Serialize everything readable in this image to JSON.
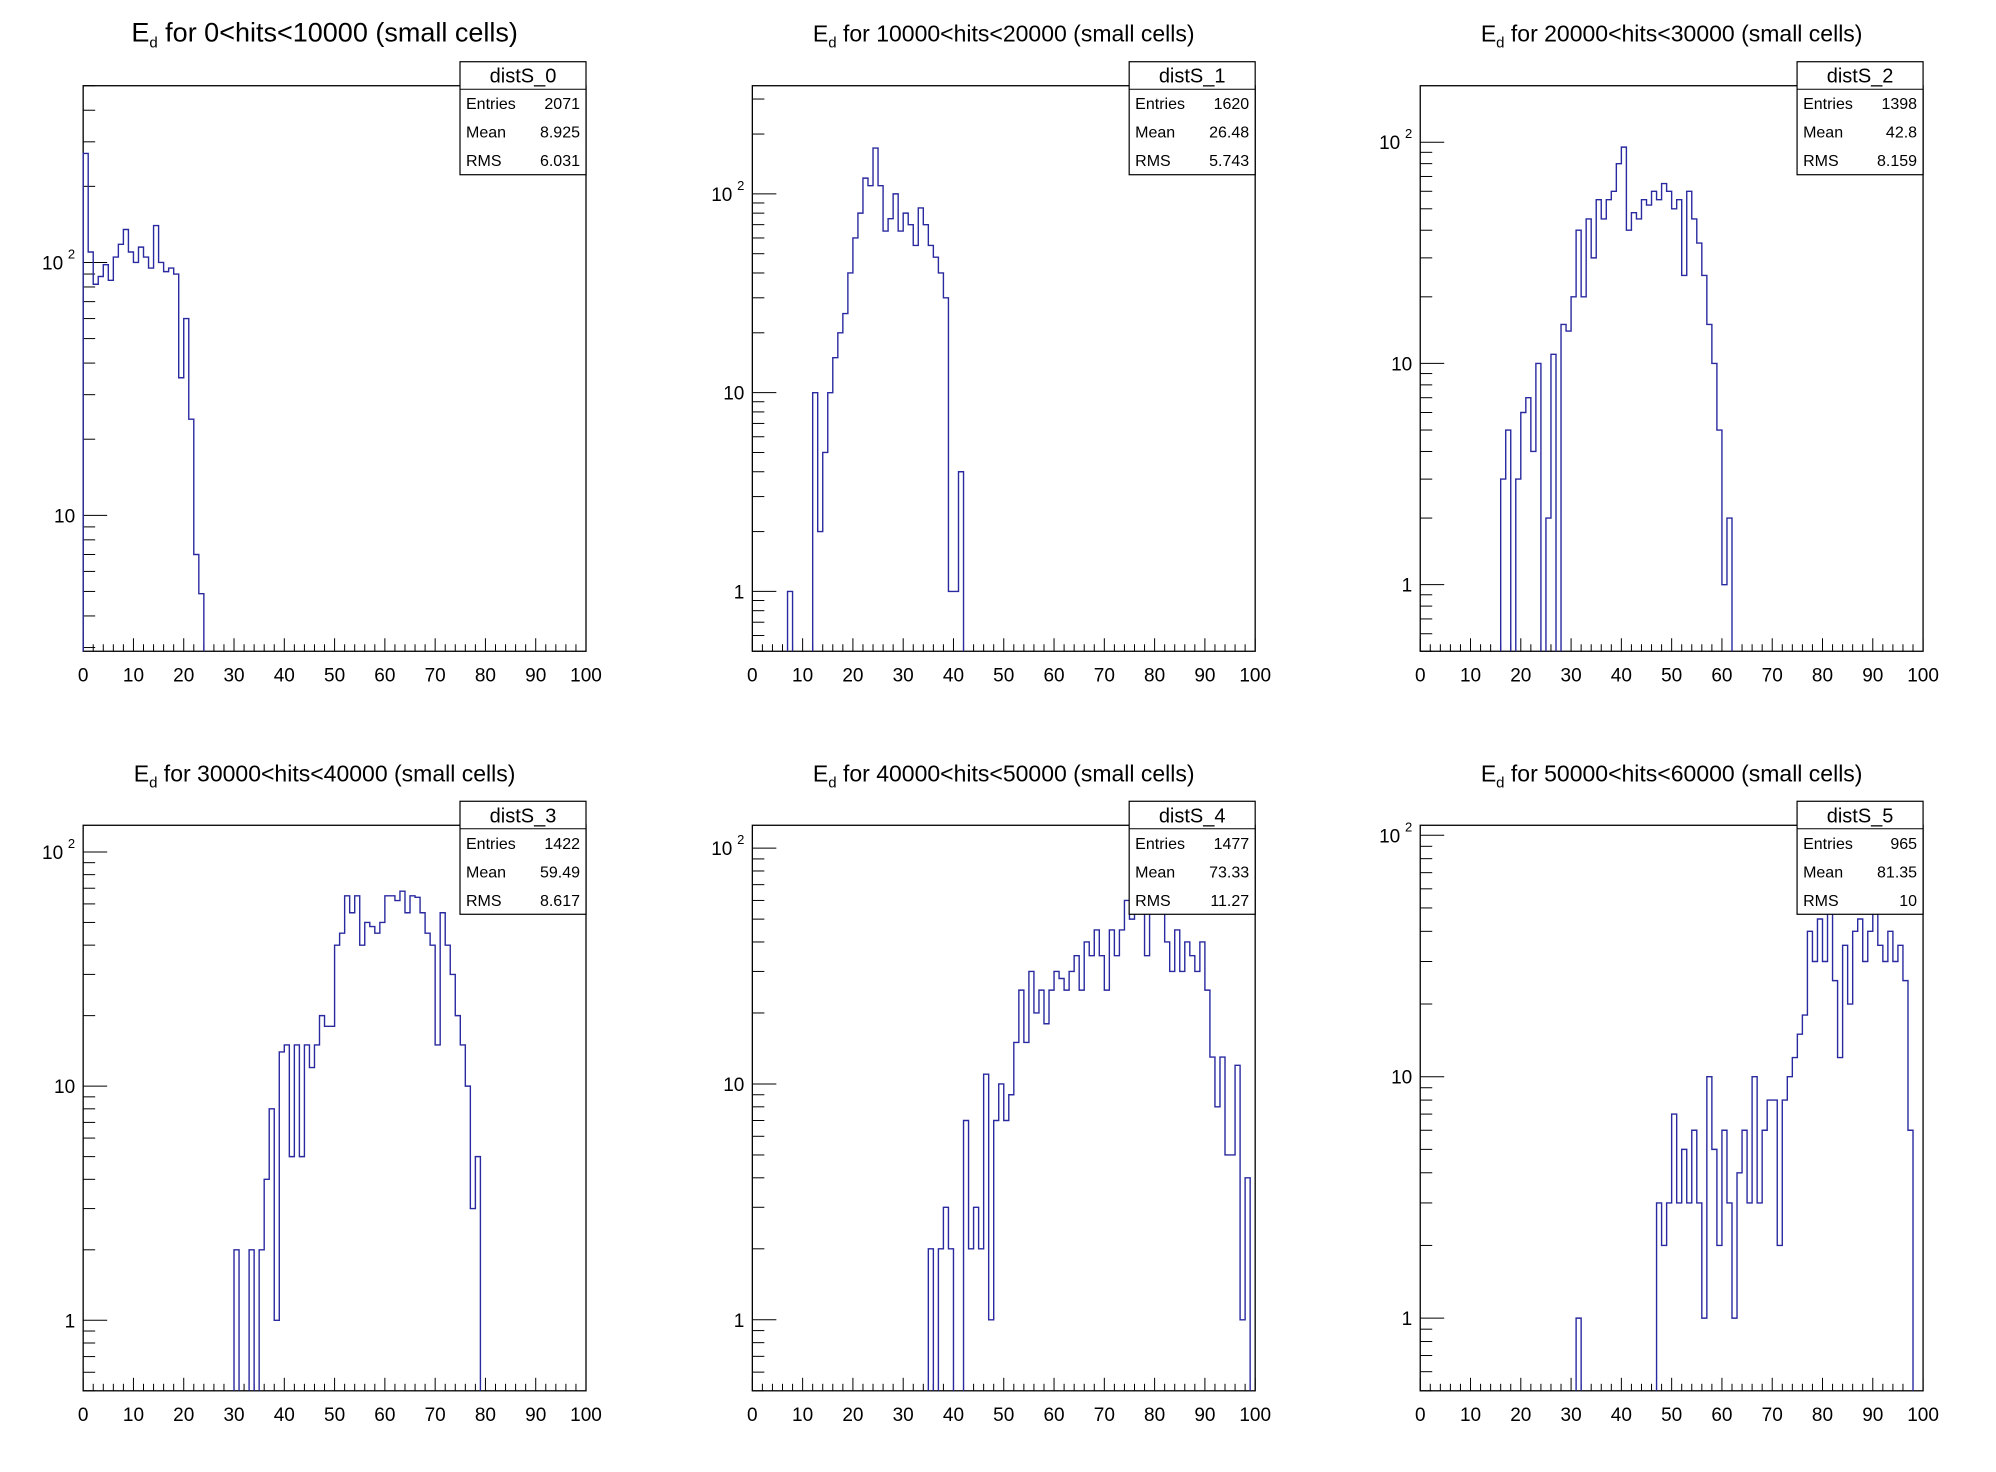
{
  "chart_data": [
    {
      "type": "bar",
      "title_main": "E",
      "title_sub": "d",
      "title_rest": " for 0<hits<10000 (small cells)",
      "stats": {
        "name": "distS_0",
        "entries": "2071",
        "mean": "8.925",
        "rms": "6.031"
      },
      "x_ticks": [
        "0",
        "10",
        "20",
        "30",
        "40",
        "50",
        "60",
        "70",
        "80",
        "90",
        "100"
      ],
      "xlim": [
        0,
        100
      ],
      "log_y": true,
      "ylim": [
        2.9,
        500
      ],
      "y_ticks": [
        {
          "v": 10,
          "label": "10"
        },
        {
          "v": 100,
          "label": "10",
          "sup": "2"
        }
      ],
      "bin_width": 1,
      "bins": {
        "0": 270,
        "1": 110,
        "2": 82,
        "3": 88,
        "4": 98,
        "5": 85,
        "6": 105,
        "7": 118,
        "8": 135,
        "9": 110,
        "10": 100,
        "11": 115,
        "12": 105,
        "13": 95,
        "14": 140,
        "15": 100,
        "16": 92,
        "17": 95,
        "18": 90,
        "19": 35,
        "20": 60,
        "21": 24,
        "22": 7,
        "23": 4.9
      }
    },
    {
      "type": "bar",
      "title_main": "E",
      "title_sub": "d",
      "title_rest": " for 10000<hits<20000 (small cells)",
      "stats": {
        "name": "distS_1",
        "entries": "1620",
        "mean": "26.48",
        "rms": "5.743"
      },
      "x_ticks": [
        "0",
        "10",
        "20",
        "30",
        "40",
        "50",
        "60",
        "70",
        "80",
        "90",
        "100"
      ],
      "xlim": [
        0,
        100
      ],
      "log_y": true,
      "ylim": [
        0.5,
        350
      ],
      "y_ticks": [
        {
          "v": 1,
          "label": "1"
        },
        {
          "v": 10,
          "label": "10"
        },
        {
          "v": 100,
          "label": "10",
          "sup": "2"
        }
      ],
      "bin_width": 1,
      "bins": {
        "7": 1,
        "12": 10,
        "13": 2,
        "14": 5,
        "15": 10,
        "16": 15,
        "17": 20,
        "18": 25,
        "19": 40,
        "20": 60,
        "21": 80,
        "22": 120,
        "23": 110,
        "24": 170,
        "25": 110,
        "26": 65,
        "27": 75,
        "28": 100,
        "29": 65,
        "30": 80,
        "31": 70,
        "32": 55,
        "33": 85,
        "34": 70,
        "35": 55,
        "36": 48,
        "37": 40,
        "38": 30,
        "39": 1,
        "40": 1,
        "41": 4
      }
    },
    {
      "type": "bar",
      "title_main": "E",
      "title_sub": "d",
      "title_rest": " for 20000<hits<30000 (small cells)",
      "stats": {
        "name": "distS_2",
        "entries": "1398",
        "mean": "42.8",
        "rms": "8.159"
      },
      "x_ticks": [
        "0",
        "10",
        "20",
        "30",
        "40",
        "50",
        "60",
        "70",
        "80",
        "90",
        "100"
      ],
      "xlim": [
        0,
        100
      ],
      "log_y": true,
      "ylim": [
        0.5,
        180
      ],
      "y_ticks": [
        {
          "v": 1,
          "label": "1"
        },
        {
          "v": 10,
          "label": "10"
        },
        {
          "v": 100,
          "label": "10",
          "sup": "2"
        }
      ],
      "bin_width": 1,
      "bins": {
        "16": 3,
        "17": 5,
        "19": 3,
        "20": 6,
        "21": 7,
        "22": 4,
        "23": 10,
        "25": 2,
        "26": 11,
        "28": 15,
        "29": 14,
        "30": 20,
        "31": 40,
        "32": 20,
        "33": 45,
        "34": 30,
        "35": 55,
        "36": 45,
        "37": 55,
        "38": 60,
        "39": 80,
        "40": 95,
        "41": 40,
        "42": 48,
        "43": 45,
        "44": 55,
        "45": 52,
        "46": 60,
        "47": 55,
        "48": 65,
        "49": 60,
        "50": 50,
        "51": 55,
        "52": 25,
        "53": 60,
        "54": 45,
        "55": 35,
        "56": 25,
        "57": 15,
        "58": 10,
        "59": 5,
        "60": 1,
        "61": 2
      }
    },
    {
      "type": "bar",
      "title_main": "E",
      "title_sub": "d",
      "title_rest": " for 30000<hits<40000 (small cells)",
      "stats": {
        "name": "distS_3",
        "entries": "1422",
        "mean": "59.49",
        "rms": "8.617"
      },
      "x_ticks": [
        "0",
        "10",
        "20",
        "30",
        "40",
        "50",
        "60",
        "70",
        "80",
        "90",
        "100"
      ],
      "xlim": [
        0,
        100
      ],
      "log_y": true,
      "ylim": [
        0.5,
        130
      ],
      "y_ticks": [
        {
          "v": 1,
          "label": "1"
        },
        {
          "v": 10,
          "label": "10"
        },
        {
          "v": 100,
          "label": "10",
          "sup": "2"
        }
      ],
      "bin_width": 1,
      "bins": {
        "30": 2,
        "33": 2,
        "35": 2,
        "36": 4,
        "37": 8,
        "38": 1,
        "39": 14,
        "40": 15,
        "41": 5,
        "42": 15,
        "43": 5,
        "44": 15,
        "45": 12,
        "46": 15,
        "47": 20,
        "48": 18,
        "49": 18,
        "50": 40,
        "51": 45,
        "52": 65,
        "53": 55,
        "54": 65,
        "55": 40,
        "56": 50,
        "57": 48,
        "58": 45,
        "59": 50,
        "60": 65,
        "61": 65,
        "62": 62,
        "63": 68,
        "64": 55,
        "65": 65,
        "66": 64,
        "67": 55,
        "68": 45,
        "69": 40,
        "70": 15,
        "71": 55,
        "72": 40,
        "73": 30,
        "74": 20,
        "75": 15,
        "76": 10,
        "77": 3,
        "78": 5
      }
    },
    {
      "type": "bar",
      "title_main": "E",
      "title_sub": "d",
      "title_rest": " for 40000<hits<50000 (small cells)",
      "stats": {
        "name": "distS_4",
        "entries": "1477",
        "mean": "73.33",
        "rms": "11.27"
      },
      "x_ticks": [
        "0",
        "10",
        "20",
        "30",
        "40",
        "50",
        "60",
        "70",
        "80",
        "90",
        "100"
      ],
      "xlim": [
        0,
        100
      ],
      "log_y": true,
      "ylim": [
        0.5,
        125
      ],
      "y_ticks": [
        {
          "v": 1,
          "label": "1"
        },
        {
          "v": 10,
          "label": "10"
        },
        {
          "v": 100,
          "label": "10",
          "sup": "2"
        }
      ],
      "bin_width": 1,
      "bins": {
        "35": 2,
        "37": 2,
        "38": 3,
        "39": 2,
        "42": 7,
        "43": 2,
        "44": 3,
        "45": 2,
        "46": 11,
        "47": 1,
        "48": 7,
        "49": 10,
        "50": 7,
        "51": 9,
        "52": 15,
        "53": 25,
        "54": 15,
        "55": 30,
        "56": 20,
        "57": 25,
        "58": 18,
        "59": 25,
        "60": 30,
        "61": 28,
        "62": 25,
        "63": 30,
        "64": 35,
        "65": 25,
        "66": 40,
        "67": 35,
        "68": 45,
        "69": 35,
        "70": 25,
        "71": 45,
        "72": 35,
        "73": 45,
        "74": 60,
        "75": 50,
        "76": 70,
        "77": 65,
        "78": 35,
        "79": 65,
        "80": 60,
        "81": 70,
        "82": 40,
        "83": 30,
        "84": 45,
        "85": 30,
        "86": 40,
        "87": 35,
        "88": 30,
        "89": 40,
        "90": 25,
        "91": 13,
        "92": 8,
        "93": 13,
        "94": 5,
        "95": 5,
        "96": 12,
        "97": 1,
        "98": 4
      }
    },
    {
      "type": "bar",
      "title_main": "E",
      "title_sub": "d",
      "title_rest": " for 50000<hits<60000 (small cells)",
      "stats": {
        "name": "distS_5",
        "entries": "965",
        "mean": "81.35",
        "rms": "10"
      },
      "x_ticks": [
        "0",
        "10",
        "20",
        "30",
        "40",
        "50",
        "60",
        "70",
        "80",
        "90",
        "100"
      ],
      "xlim": [
        0,
        100
      ],
      "log_y": true,
      "ylim": [
        0.5,
        110
      ],
      "y_ticks": [
        {
          "v": 1,
          "label": "1"
        },
        {
          "v": 10,
          "label": "10"
        },
        {
          "v": 100,
          "label": "10",
          "sup": "2"
        }
      ],
      "bin_width": 1,
      "bins": {
        "31": 1,
        "47": 3,
        "48": 2,
        "49": 3,
        "50": 7,
        "51": 3,
        "52": 5,
        "53": 3,
        "54": 6,
        "55": 3,
        "56": 1,
        "57": 10,
        "58": 5,
        "59": 2,
        "60": 6,
        "61": 3,
        "62": 1,
        "63": 4,
        "64": 6,
        "65": 3,
        "66": 10,
        "67": 3,
        "68": 6,
        "69": 8,
        "70": 8,
        "71": 2,
        "72": 8,
        "73": 10,
        "74": 12,
        "75": 15,
        "76": 18,
        "77": 40,
        "78": 30,
        "79": 45,
        "80": 30,
        "81": 55,
        "82": 25,
        "83": 12,
        "84": 35,
        "85": 20,
        "86": 40,
        "87": 45,
        "88": 30,
        "89": 40,
        "90": 50,
        "91": 35,
        "92": 30,
        "93": 40,
        "94": 30,
        "95": 35,
        "96": 25,
        "97": 6
      }
    }
  ]
}
